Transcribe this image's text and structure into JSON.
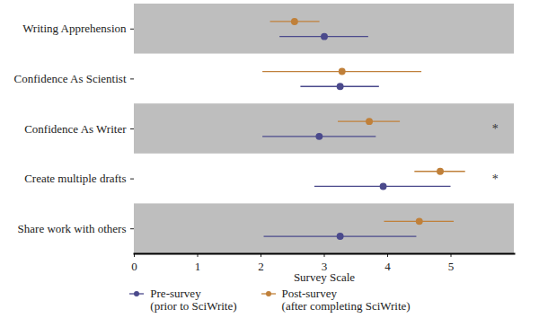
{
  "chart_data": {
    "type": "dot",
    "xlabel": "Survey Scale",
    "categories": [
      "Share work with others",
      "Create multiple drafts",
      "Confidence As Writer",
      "Confidence As Scientist",
      "Writing Apprehension"
    ],
    "series": [
      {
        "name": "Pre-survey\n(prior to SciWrite)",
        "color": "#4b4a8c",
        "values": [
          3.25,
          3.93,
          2.92,
          3.25,
          3.0
        ],
        "lower": [
          2.05,
          2.85,
          2.03,
          2.63,
          2.3
        ],
        "upper": [
          4.46,
          5.0,
          3.82,
          3.87,
          3.7
        ]
      },
      {
        "name": "Post-survey\n(after completing SciWrite)",
        "color": "#c0803a",
        "values": [
          4.5,
          4.83,
          3.71,
          3.28,
          2.53
        ],
        "lower": [
          3.95,
          4.43,
          3.22,
          2.03,
          2.15
        ],
        "upper": [
          5.05,
          5.23,
          4.2,
          4.54,
          2.93
        ]
      }
    ],
    "annotations": [
      {
        "category": "Create multiple drafts",
        "x": 5.7,
        "text": "*"
      },
      {
        "category": "Confidence As Writer",
        "x": 5.7,
        "text": "*"
      }
    ],
    "xlim": [
      0,
      6
    ],
    "xticks": [
      0,
      1,
      2,
      3,
      4,
      5
    ],
    "legend": "bottom"
  }
}
